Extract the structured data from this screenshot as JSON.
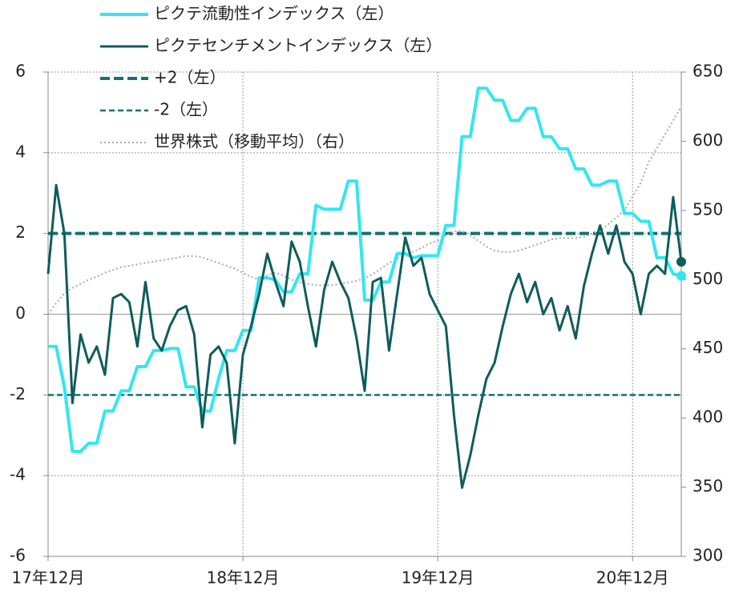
{
  "chart_data": {
    "type": "line",
    "categories": [
      "17年12月",
      null,
      null,
      null,
      null,
      null,
      null,
      null,
      null,
      null,
      null,
      null,
      null,
      null,
      null,
      null,
      null,
      null,
      null,
      null,
      null,
      null,
      null,
      null,
      "18年12月",
      null,
      null,
      null,
      null,
      null,
      null,
      null,
      null,
      null,
      null,
      null,
      null,
      null,
      null,
      null,
      null,
      null,
      null,
      null,
      null,
      null,
      null,
      null,
      "19年12月",
      null,
      null,
      null,
      null,
      null,
      null,
      null,
      null,
      null,
      null,
      null,
      null,
      null,
      null,
      null,
      null,
      null,
      null,
      null,
      null,
      null,
      null,
      null,
      "20年12月",
      null,
      null,
      null,
      null,
      null,
      null
    ],
    "series": [
      {
        "name": "ピクテ流動性インデックス（左）",
        "color": "#33e6f0",
        "width": 4,
        "end_dot": true,
        "values": [
          -0.8,
          -0.8,
          -1.8,
          -3.4,
          -3.4,
          -3.2,
          -3.2,
          -2.4,
          -2.4,
          -1.9,
          -1.9,
          -1.3,
          -1.3,
          -0.9,
          -0.9,
          -0.85,
          -0.85,
          -1.8,
          -1.8,
          -2.4,
          -2.4,
          -1.6,
          -0.9,
          -0.9,
          -0.4,
          -0.4,
          0.9,
          0.9,
          0.85,
          0.55,
          0.55,
          1.0,
          1.0,
          2.7,
          2.6,
          2.6,
          2.6,
          3.3,
          3.3,
          0.35,
          0.35,
          0.8,
          0.8,
          1.5,
          1.5,
          1.4,
          1.45,
          1.45,
          1.45,
          2.2,
          2.2,
          4.4,
          4.4,
          5.6,
          5.6,
          5.3,
          5.3,
          4.8,
          4.8,
          5.1,
          5.1,
          4.4,
          4.4,
          4.1,
          4.1,
          3.6,
          3.6,
          3.2,
          3.2,
          3.3,
          3.3,
          2.5,
          2.5,
          2.3,
          2.3,
          1.4,
          1.4,
          1.0,
          0.95
        ]
      },
      {
        "name": "ピクテセンチメントインデックス（左）",
        "color": "#0f5c5c",
        "width": 3,
        "end_dot": true,
        "values": [
          1.0,
          3.2,
          2.0,
          -2.2,
          -0.5,
          -1.2,
          -0.8,
          -1.5,
          0.4,
          0.5,
          0.3,
          -0.8,
          0.8,
          -0.6,
          -0.9,
          -0.3,
          0.1,
          0.2,
          -0.5,
          -2.8,
          -1.0,
          -0.8,
          -1.2,
          -3.2,
          -1.0,
          -0.3,
          0.5,
          1.5,
          0.8,
          0.2,
          1.8,
          1.3,
          0.2,
          -0.8,
          0.6,
          1.3,
          0.8,
          0.4,
          -0.6,
          -1.9,
          0.8,
          0.9,
          -0.9,
          0.5,
          1.9,
          1.2,
          1.4,
          0.5,
          0.1,
          -0.3,
          -2.5,
          -4.3,
          -3.5,
          -2.5,
          -1.6,
          -1.2,
          -0.3,
          0.5,
          1.0,
          0.3,
          0.8,
          0.0,
          0.4,
          -0.4,
          0.2,
          -0.6,
          0.7,
          1.5,
          2.2,
          1.5,
          2.2,
          1.3,
          1.0,
          0.0,
          1.0,
          1.2,
          1.0,
          2.9,
          1.3
        ]
      },
      {
        "name": "世界株式（移動平均）（右）",
        "color": "#aaaaaa",
        "width": 2,
        "dotted": true,
        "axis": "y2",
        "values": [
          475,
          483,
          490,
          494,
          497,
          500,
          502,
          505,
          507,
          509,
          510,
          511,
          512,
          513,
          514,
          515,
          516,
          517,
          517,
          516,
          514,
          512,
          510,
          508,
          505,
          502,
          500,
          503,
          505,
          503,
          500,
          498,
          497,
          496,
          496,
          496,
          497,
          498,
          499,
          501,
          504,
          508,
          512,
          515,
          518,
          520,
          523,
          526,
          528,
          532,
          535,
          535,
          532,
          528,
          524,
          521,
          520,
          520,
          521,
          523,
          525,
          527,
          529,
          530,
          530,
          530,
          531,
          533,
          535,
          540,
          545,
          550,
          560,
          570,
          585,
          595,
          605,
          615,
          625
        ]
      }
    ],
    "reference_lines": [
      {
        "name": "+2（左）",
        "value": 2,
        "color": "#157070",
        "width": 4
      },
      {
        "name": "-2（左）",
        "value": -2,
        "color": "#157070",
        "width": 2.5
      }
    ],
    "ylim": [
      -6,
      6
    ],
    "yticks": [
      -6,
      -4,
      -2,
      0,
      2,
      4,
      6
    ],
    "y2lim": [
      300,
      650
    ],
    "y2ticks": [
      300,
      350,
      400,
      450,
      500,
      550,
      600,
      650
    ],
    "negative_tick_color": "#e02020",
    "grid": true
  }
}
